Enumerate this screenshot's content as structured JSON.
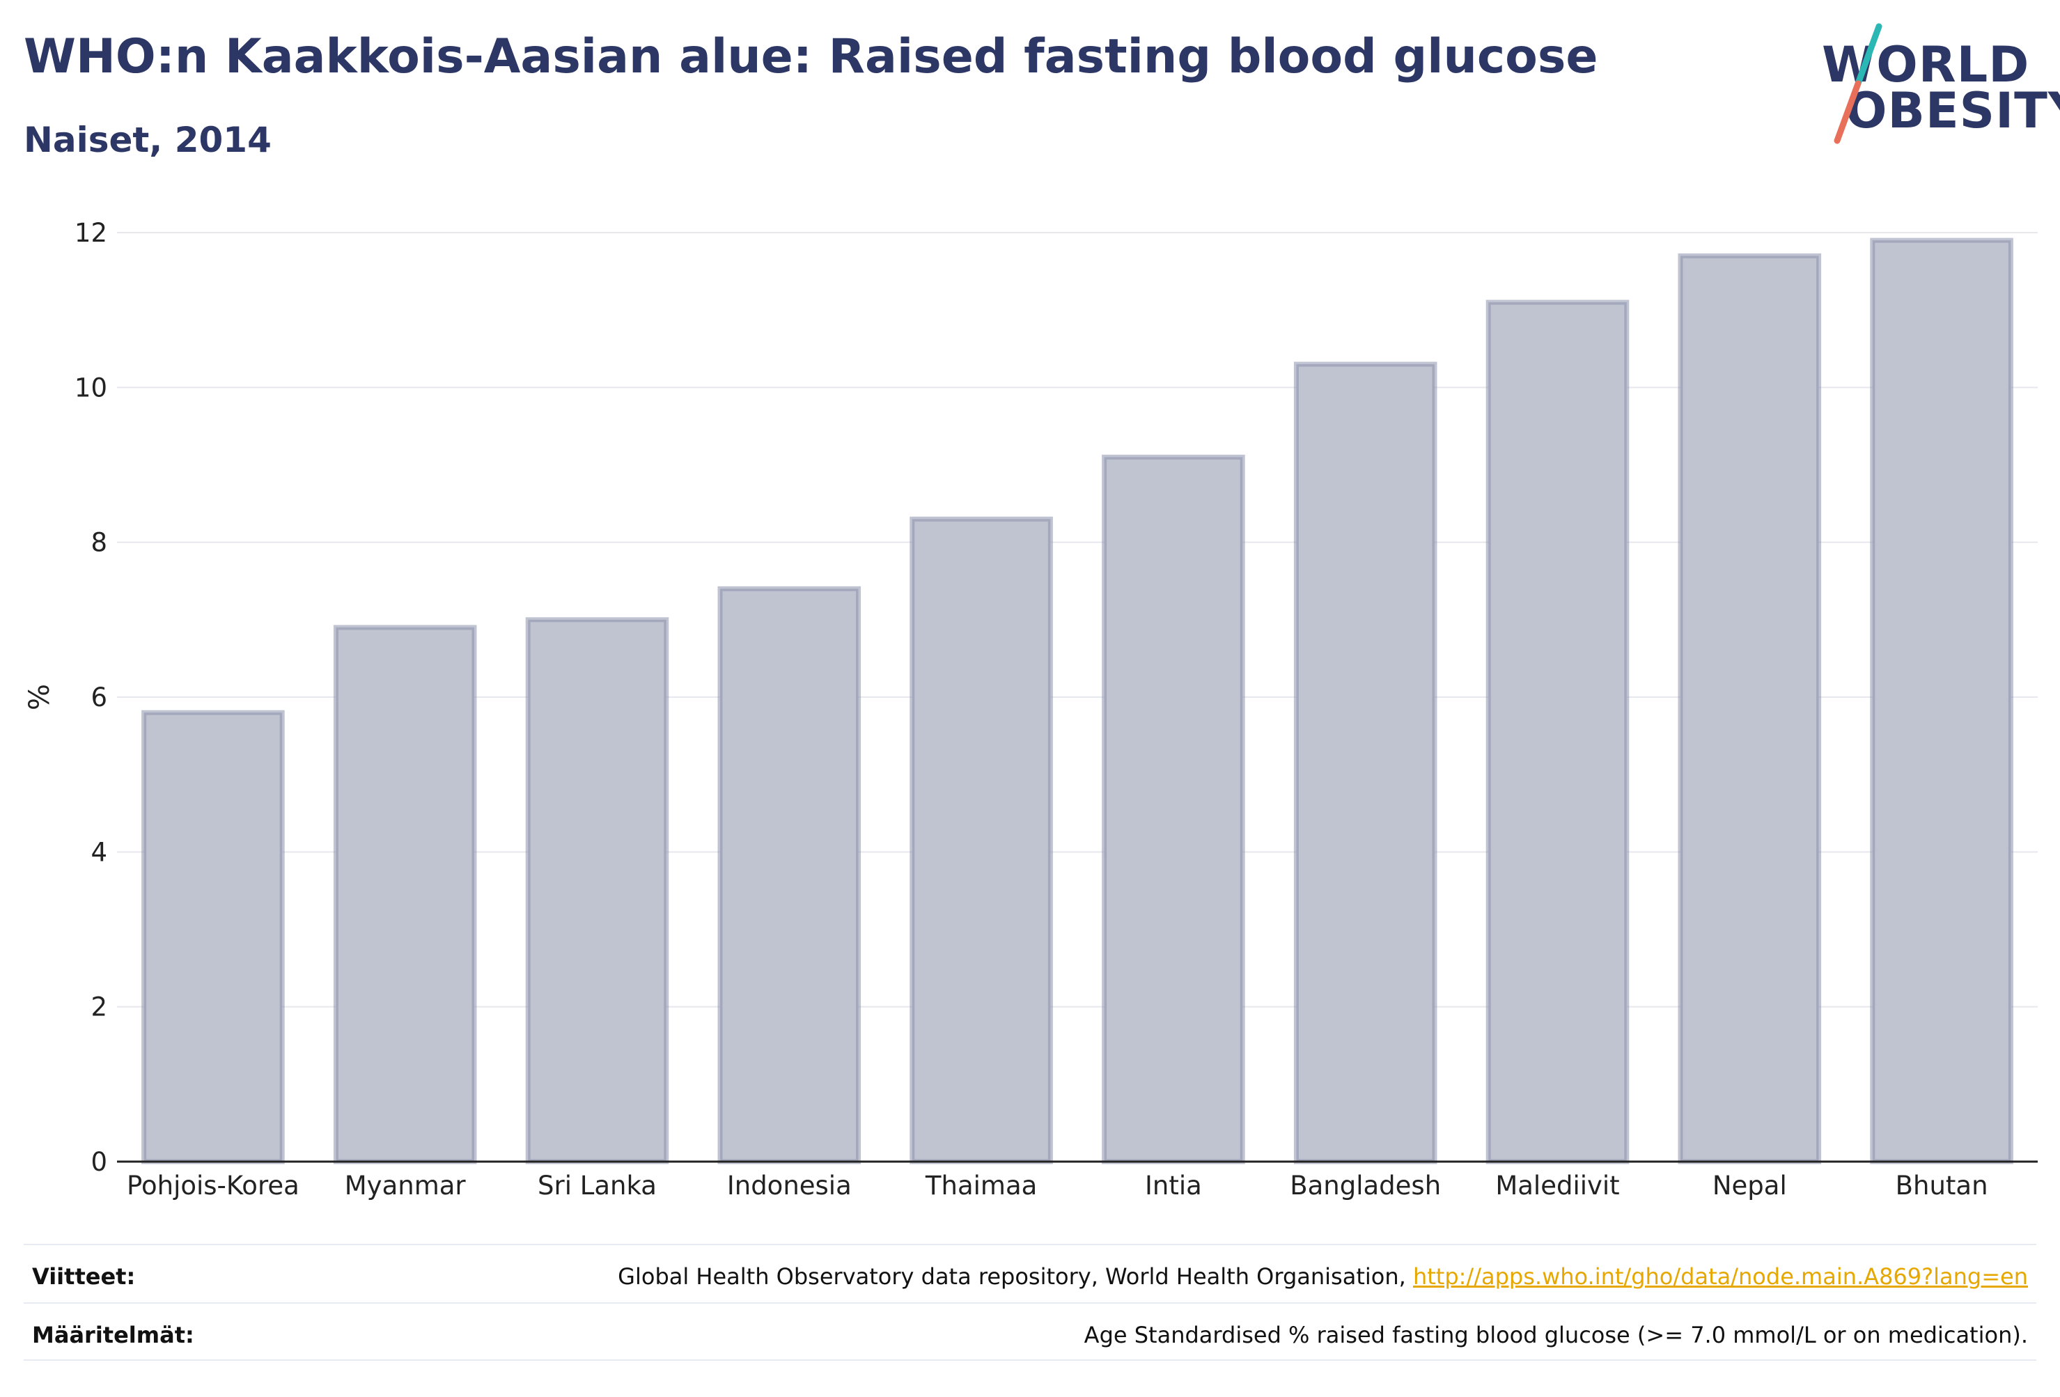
{
  "header": {
    "title": "WHO:n Kaakkois-Aasian alue: Raised fasting blood glucose",
    "subtitle": "Naiset, 2014"
  },
  "logo": {
    "line1": "WORLD",
    "line2": "OBESITY",
    "colors": {
      "text": "#2d3766",
      "teal": "#2bb7b3",
      "coral": "#e8705a"
    }
  },
  "chart_data": {
    "type": "bar",
    "categories": [
      "Pohjois-Korea",
      "Myanmar",
      "Sri Lanka",
      "Indonesia",
      "Thaimaa",
      "Intia",
      "Bangladesh",
      "Malediivit",
      "Nepal",
      "Bhutan"
    ],
    "values": [
      5.8,
      6.9,
      7.0,
      7.4,
      8.3,
      9.1,
      10.3,
      11.1,
      11.7,
      11.9
    ],
    "ylabel": "%",
    "ylim": [
      0,
      12
    ],
    "yticks": [
      0,
      2,
      4,
      6,
      8,
      10,
      12
    ],
    "grid": true,
    "colors": {
      "bar_fill": "#c0c3d0",
      "bar_stroke": "#8c92ab",
      "grid": "#e6e8ee",
      "axis": "#222222"
    }
  },
  "footer": {
    "sources_label": "Viitteet:",
    "sources_text": "Global Health Observatory data repository, World Health Organisation, ",
    "sources_link": "http://apps.who.int/gho/data/node.main.A869?lang=en",
    "definitions_label": "Määritelmät:",
    "definitions_text": "Age Standardised % raised fasting blood glucose (>= 7.0 mmol/L or on medication)."
  }
}
